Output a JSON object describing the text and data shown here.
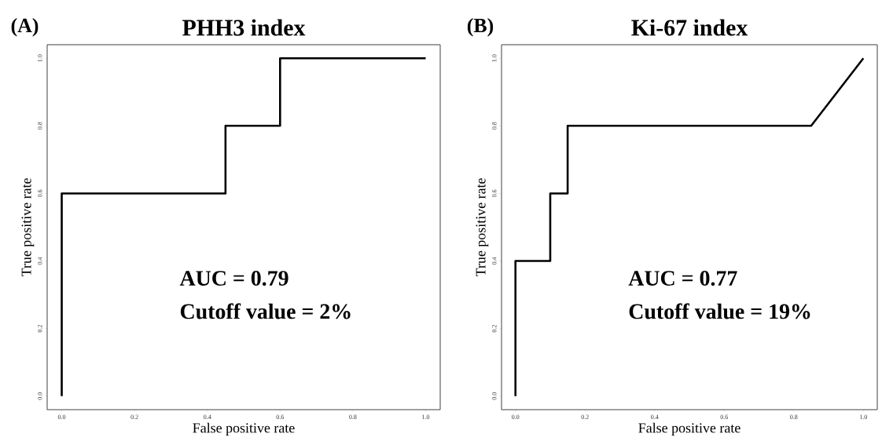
{
  "chart_data": [
    {
      "type": "line",
      "title": "PHH3 index",
      "xlabel": "False positive rate",
      "ylabel": "True positive rate",
      "annotations": [
        "(A)",
        "AUC = 0.79",
        "Cutoff value = 2%"
      ],
      "series": [
        {
          "color": "#000000",
          "x": [
            0,
            0,
            0.45,
            0.45,
            0.6,
            0.6,
            1
          ],
          "values": [
            0,
            0.6,
            0.6,
            0.8,
            0.8,
            1,
            1
          ]
        }
      ],
      "xlim": [
        -0.04,
        1.04
      ],
      "ylim": [
        -0.04,
        1.04
      ],
      "xticks": [
        {
          "value": 0,
          "label": "0.0"
        },
        {
          "value": 0.2,
          "label": "0.2"
        },
        {
          "value": 0.4,
          "label": "0.4"
        },
        {
          "value": 0.6,
          "label": "0.6"
        },
        {
          "value": 0.8,
          "label": "0.8"
        },
        {
          "value": 1,
          "label": "1.0"
        }
      ],
      "yticks": [
        {
          "value": 0,
          "label": "0.0"
        },
        {
          "value": 0.2,
          "label": "0.2"
        },
        {
          "value": 0.4,
          "label": "0.4"
        },
        {
          "value": 0.6,
          "label": "0.6"
        },
        {
          "value": 0.8,
          "label": "0.8"
        },
        {
          "value": 1,
          "label": "1.0"
        }
      ],
      "grid": false,
      "marker": "none",
      "line_style": "solid"
    },
    {
      "type": "line",
      "title": "Ki-67 index",
      "xlabel": "False positive rate",
      "ylabel": "True positive rate",
      "annotations": [
        "(B)",
        "AUC = 0.77",
        "Cutoff value = 19%"
      ],
      "series": [
        {
          "color": "#000000",
          "x": [
            0,
            0,
            0.1,
            0.1,
            0.15,
            0.15,
            0.85,
            1
          ],
          "values": [
            0,
            0.4,
            0.4,
            0.6,
            0.6,
            0.8,
            0.8,
            1
          ]
        }
      ],
      "xlim": [
        -0.04,
        1.04
      ],
      "ylim": [
        -0.04,
        1.04
      ],
      "xticks": [
        {
          "value": 0,
          "label": "0.0"
        },
        {
          "value": 0.2,
          "label": "0.2"
        },
        {
          "value": 0.4,
          "label": "0.4"
        },
        {
          "value": 0.6,
          "label": "0.6"
        },
        {
          "value": 0.8,
          "label": "0.8"
        },
        {
          "value": 1,
          "label": "1.0"
        }
      ],
      "yticks": [
        {
          "value": 0,
          "label": "0.0"
        },
        {
          "value": 0.2,
          "label": "0.2"
        },
        {
          "value": 0.4,
          "label": "0.4"
        },
        {
          "value": 0.6,
          "label": "0.6"
        },
        {
          "value": 0.8,
          "label": "0.8"
        },
        {
          "value": 1,
          "label": "1.0"
        }
      ],
      "grid": false,
      "marker": "none",
      "line_style": "solid"
    }
  ]
}
